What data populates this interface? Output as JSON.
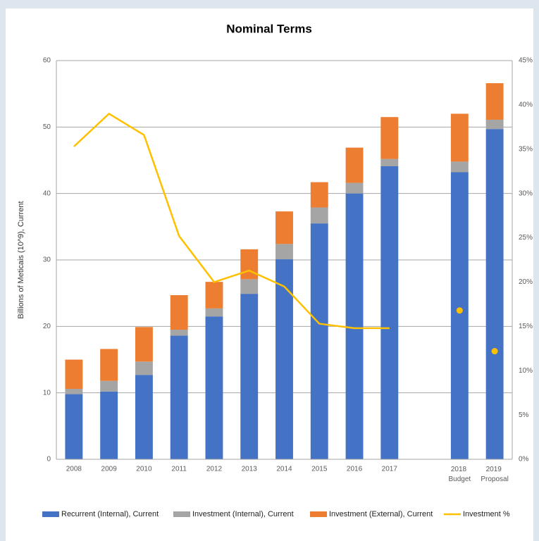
{
  "chart_data": {
    "type": "stacked_bar_line",
    "title": "Nominal Terms",
    "y_label": "Billions of Meticais (10^9), Current",
    "categories": [
      "2008",
      "2009",
      "2010",
      "2011",
      "2012",
      "2013",
      "2014",
      "2015",
      "2016",
      "2017",
      null,
      "2018 Budget",
      "2019 Proposal"
    ],
    "series": [
      {
        "name": "Recurrent (Internal), Current",
        "color": "#4472c4",
        "values": [
          9.8,
          10.2,
          12.7,
          18.6,
          21.5,
          24.9,
          30.1,
          35.5,
          40.0,
          44.1,
          null,
          43.2,
          49.7
        ]
      },
      {
        "name": "Investment (Internal), Current",
        "color": "#a5a5a5",
        "values": [
          0.8,
          1.6,
          2.0,
          0.9,
          1.2,
          2.2,
          2.3,
          2.4,
          1.6,
          1.1,
          null,
          1.6,
          1.4
        ]
      },
      {
        "name": "Investment (External), Current",
        "color": "#ed7d31",
        "values": [
          4.4,
          4.8,
          5.2,
          5.2,
          4.0,
          4.5,
          4.9,
          3.8,
          5.3,
          6.3,
          null,
          7.2,
          5.5
        ]
      },
      {
        "name": "Investment %",
        "color": "#ffc000",
        "axis": "y2",
        "type": "line",
        "marker_only": [
          11,
          12
        ],
        "values": [
          35.3,
          39.0,
          36.6,
          25.2,
          20.0,
          21.3,
          19.5,
          15.3,
          14.8,
          14.8,
          null,
          16.8,
          12.2
        ]
      }
    ],
    "ylim": [
      0,
      60
    ],
    "yticks": [
      0,
      10,
      20,
      30,
      40,
      50,
      60
    ],
    "y2lim": [
      0,
      45
    ],
    "y2ticks": [
      {
        "value": 0,
        "label": "0%"
      },
      {
        "value": 5,
        "label": "5%"
      },
      {
        "value": 10,
        "label": "10%"
      },
      {
        "value": 15,
        "label": "15%"
      },
      {
        "value": 20,
        "label": "20%"
      },
      {
        "value": 25,
        "label": "25%"
      },
      {
        "value": 30,
        "label": "30%"
      },
      {
        "value": 35,
        "label": "35%"
      },
      {
        "value": 40,
        "label": "40%"
      },
      {
        "value": 45,
        "label": "45%"
      }
    ],
    "grid": true,
    "legend": "bottom"
  }
}
